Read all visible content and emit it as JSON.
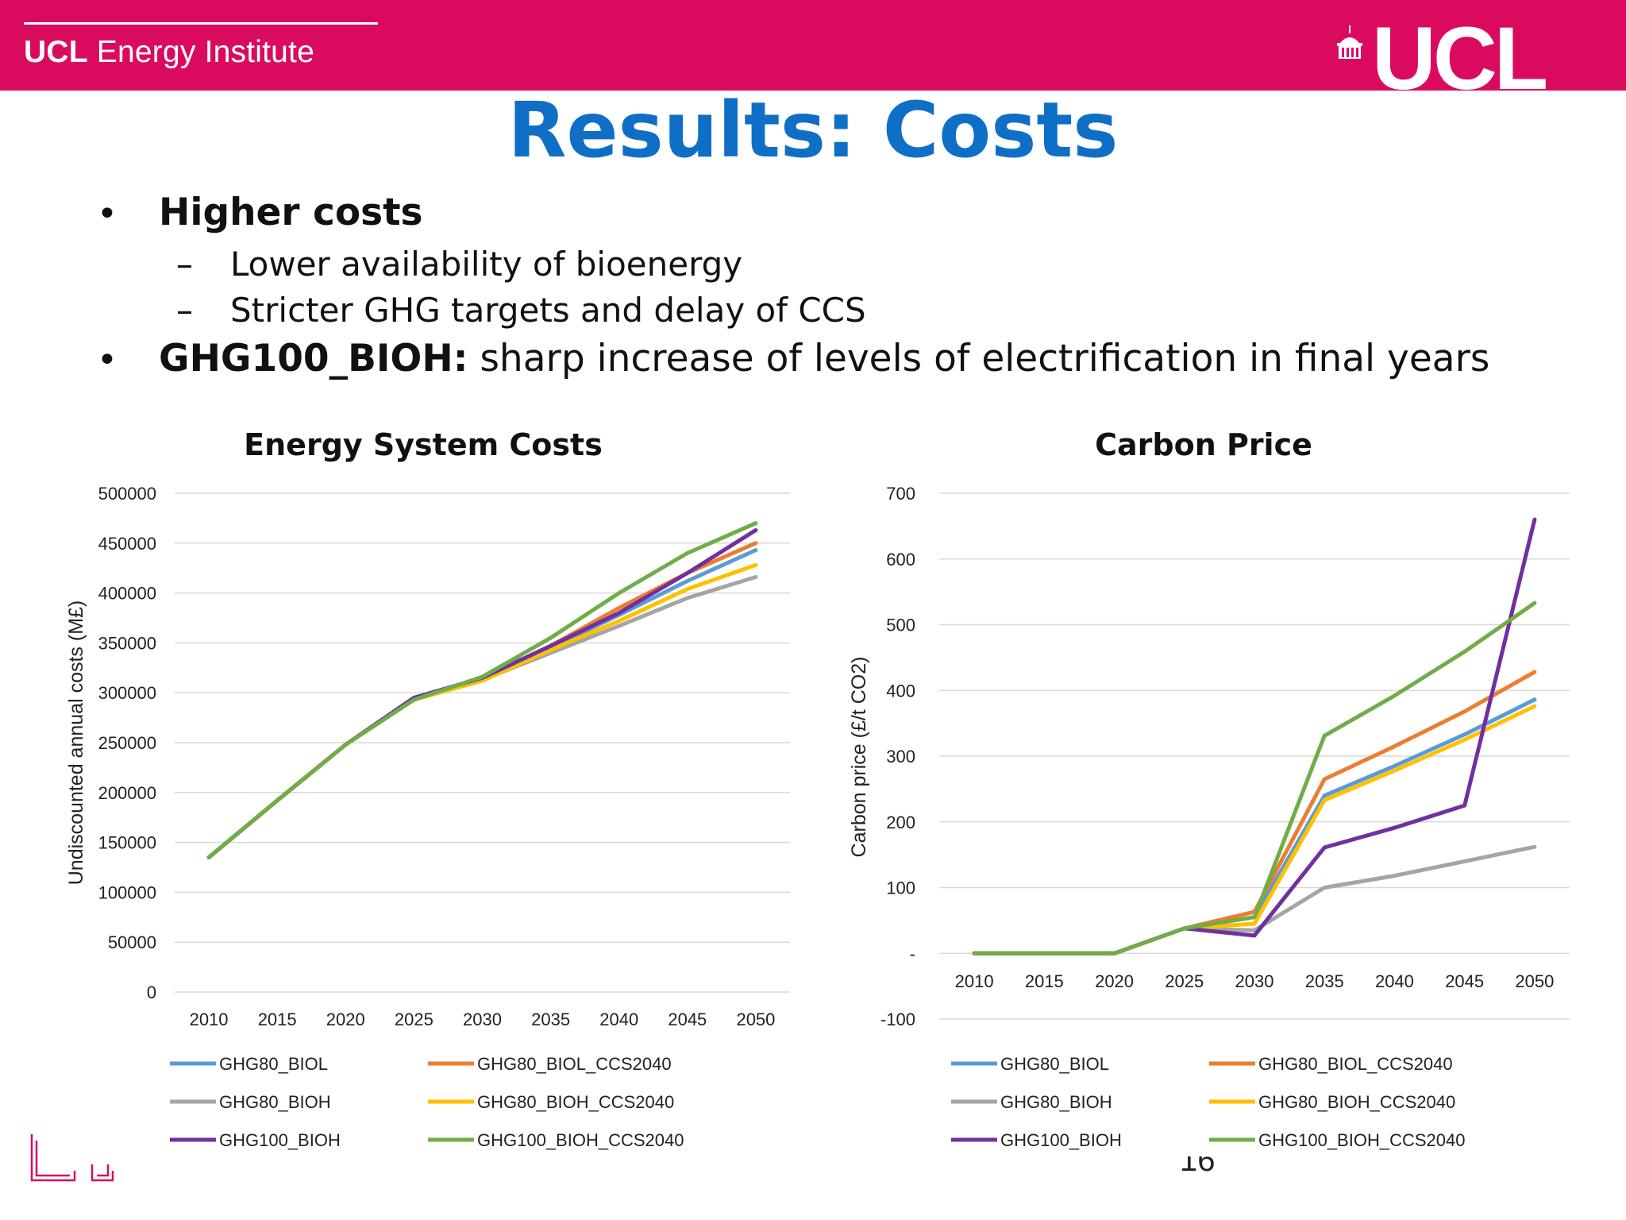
{
  "header": {
    "institute_bold": "UCL",
    "institute_rest": " Energy Institute",
    "logo_text": "UCL",
    "banner_color": "#da0b5f"
  },
  "slide": {
    "title": "Results: Costs",
    "bullet1": "Higher costs",
    "sub1": "Lower availability of bioenergy",
    "sub2": "Stricter GHG targets and delay of CCS",
    "bullet2_bold": "GHG100_BIOH:",
    "bullet2_rest": " sharp increase of levels of electrification in final years",
    "bullet_glyph": "•",
    "dash_glyph": "–",
    "page_number": "16"
  },
  "chart_data": [
    {
      "type": "line",
      "title": "Energy System Costs",
      "xlabel": "",
      "ylabel": "Undiscounted annual costs (M£)",
      "x": [
        2010,
        2015,
        2020,
        2025,
        2030,
        2035,
        2040,
        2045,
        2050
      ],
      "ylim": [
        0,
        500000
      ],
      "yticks": [
        "0",
        "50000",
        "100000",
        "150000",
        "200000",
        "250000",
        "300000",
        "350000",
        "400000",
        "450000",
        "500000"
      ],
      "grid": true,
      "legend_position": "bottom",
      "series": [
        {
          "name": "GHG80_BIOL",
          "color": "#5b9bd5",
          "values": [
            135000,
            192000,
            248000,
            295000,
            313000,
            345000,
            378000,
            412000,
            443000
          ]
        },
        {
          "name": "GHG80_BIOL_CCS2040",
          "color": "#ed7d31",
          "values": [
            135000,
            192000,
            248000,
            294000,
            313000,
            347000,
            385000,
            420000,
            450000
          ]
        },
        {
          "name": "GHG80_BIOH",
          "color": "#a5a5a5",
          "values": [
            135000,
            192000,
            248000,
            295000,
            313000,
            340000,
            367000,
            395000,
            416000
          ]
        },
        {
          "name": "GHG80_BIOH_CCS2040",
          "color": "#ffc000",
          "values": [
            135000,
            192000,
            248000,
            293000,
            312000,
            343000,
            372000,
            404000,
            428000
          ]
        },
        {
          "name": "GHG100_BIOH",
          "color": "#7030a0",
          "values": [
            135000,
            192000,
            248000,
            295000,
            315000,
            347000,
            380000,
            420000,
            463000
          ]
        },
        {
          "name": "GHG100_BIOH_CCS2040",
          "color": "#70ad47",
          "values": [
            135000,
            192000,
            248000,
            293000,
            316000,
            355000,
            400000,
            440000,
            470000
          ]
        }
      ]
    },
    {
      "type": "line",
      "title": "Carbon Price",
      "xlabel": "",
      "ylabel": "Carbon price (£/t CO2)",
      "x": [
        2010,
        2015,
        2020,
        2025,
        2030,
        2035,
        2040,
        2045,
        2050
      ],
      "ylim": [
        -100,
        700
      ],
      "yticks": [
        "-100",
        "-",
        "100",
        "200",
        "300",
        "400",
        "500",
        "600",
        "700"
      ],
      "grid": true,
      "legend_position": "bottom",
      "series": [
        {
          "name": "GHG80_BIOL",
          "color": "#5b9bd5",
          "values": [
            0,
            0,
            0,
            38,
            55,
            240,
            285,
            333,
            386
          ]
        },
        {
          "name": "GHG80_BIOL_CCS2040",
          "color": "#ed7d31",
          "values": [
            0,
            0,
            0,
            38,
            63,
            265,
            315,
            368,
            428
          ]
        },
        {
          "name": "GHG80_BIOH",
          "color": "#a5a5a5",
          "values": [
            0,
            0,
            0,
            38,
            35,
            100,
            118,
            140,
            162
          ]
        },
        {
          "name": "GHG80_BIOH_CCS2040",
          "color": "#ffc000",
          "values": [
            0,
            0,
            0,
            38,
            45,
            233,
            278,
            325,
            376
          ]
        },
        {
          "name": "GHG100_BIOH",
          "color": "#7030a0",
          "values": [
            0,
            0,
            0,
            38,
            27,
            161,
            191,
            225,
            660
          ]
        },
        {
          "name": "GHG100_BIOH_CCS2040",
          "color": "#70ad47",
          "values": [
            0,
            0,
            0,
            38,
            55,
            331,
            392,
            459,
            533
          ]
        }
      ]
    }
  ]
}
